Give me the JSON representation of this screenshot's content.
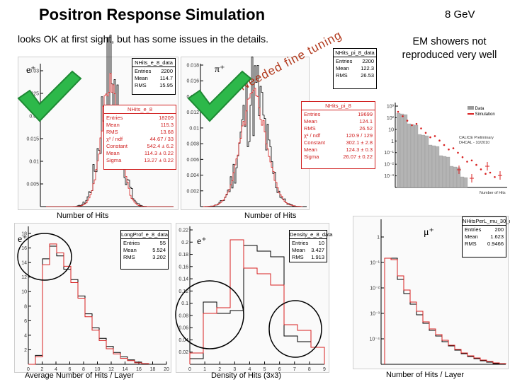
{
  "title": "Positron Response Simulation",
  "energy": "8 GeV",
  "subtitle": "looks OK at first sight, but has some issues in the details.",
  "note": "EM showers not reproduced very well",
  "needed_tuning": "Needed fine tuning",
  "colors": {
    "data": "#000000",
    "sim": "#d82020",
    "check": "#2db84a"
  },
  "panel_e": {
    "particle": "e⁺",
    "xlabel": "Number of Hits",
    "yticks": [
      "0.03",
      "0.025",
      "0.02",
      "0.015",
      "0.01",
      "0.005"
    ],
    "data_box": {
      "name": "NHits_e_8_data",
      "entries_label": "Entries",
      "entries": "2200",
      "mean_label": "Mean",
      "mean": "114.7",
      "rms_label": "RMS",
      "rms": "15.95"
    },
    "sim_box": {
      "name": "NHits_e_8",
      "rows": [
        [
          "Entries",
          "18209"
        ],
        [
          "Mean",
          "115.3"
        ],
        [
          "RMS",
          "13.68"
        ],
        [
          "χ² / ndf",
          "44.67 / 33"
        ],
        [
          "Constant",
          "542.4 ± 6.2"
        ],
        [
          "Mean",
          "114.3 ± 0.22"
        ],
        [
          "Sigma",
          "13.27 ± 0.22"
        ]
      ]
    }
  },
  "panel_pi": {
    "particle": "π⁺",
    "xlabel": "Number of Hits",
    "yticks": [
      "0.018",
      "0.016",
      "0.014",
      "0.012",
      "0.01",
      "0.008",
      "0.006",
      "0.004",
      "0.002"
    ],
    "data_box": {
      "name": "NHits_pi_8_data",
      "entries_label": "Entries",
      "entries": "2200",
      "mean_label": "Mean",
      "mean": "122.3",
      "rms_label": "RMS",
      "rms": "26.53"
    },
    "sim_box": {
      "name": "NHits_pi_8",
      "rows": [
        [
          "Entries",
          "19699"
        ],
        [
          "Mean",
          "124.1"
        ],
        [
          "RMS",
          "26.52"
        ],
        [
          "χ² / ndf",
          "120.9 / 129"
        ],
        [
          "Constant",
          "302.1 ± 2.8"
        ],
        [
          "Mean",
          "124.3 ± 0.3"
        ],
        [
          "Sigma",
          "26.07 ± 0.22"
        ]
      ]
    }
  },
  "panel_calice": {
    "legend_data": "Data",
    "legend_sim": "Simulation",
    "caption": "CALICE Preliminary DHCAL - 10/2010",
    "xlabel": "Number of Hits",
    "yticks": [
      "10³",
      "10²",
      "10",
      "1",
      "10⁻¹",
      "10⁻²",
      "10⁻³"
    ]
  },
  "panel_layer": {
    "particle": "e⁺",
    "xlabel": "Average Number of Hits / Layer",
    "yticks": [
      "18",
      "16",
      "14",
      "12",
      "10",
      "8",
      "6",
      "4",
      "2"
    ],
    "xticks": [
      "0",
      "2",
      "4",
      "6",
      "8",
      "10",
      "12",
      "14",
      "16",
      "18",
      "20"
    ],
    "box": {
      "name": "LongProf_e_8_data",
      "entries_label": "Entries",
      "entries": "55",
      "mean_label": "Mean",
      "mean": "5.524",
      "rms_label": "RMS",
      "rms": "3.202"
    }
  },
  "panel_density": {
    "particle": "e⁺",
    "xlabel": "Density of Hits (3x3)",
    "yticks": [
      "0.22",
      "0.2",
      "0.18",
      "0.16",
      "0.14",
      "0.12",
      "0.1",
      "0.08",
      "0.06",
      "0.04",
      "0.02"
    ],
    "xticks": [
      "0",
      "1",
      "2",
      "3",
      "4",
      "5",
      "6",
      "7",
      "8",
      "9"
    ],
    "box": {
      "name": "Density_e_8_data",
      "entries_label": "Entries",
      "entries": "10",
      "mean_label": "Mean",
      "mean": "3.427",
      "rms_label": "RMS",
      "rms": "1.913"
    }
  },
  "panel_mu": {
    "particle": "μ⁺",
    "xlabel": "Number of Hits / Layer",
    "yticks": [
      "1",
      "10⁻¹",
      "10⁻²",
      "10⁻³",
      "10⁻⁴"
    ],
    "box": {
      "name": "NHitsPerL_mu_30_data",
      "entries_label": "Entries",
      "entries": "200",
      "mean_label": "Mean",
      "mean": "1.623",
      "rms_label": "RMS",
      "rms": "0.9466"
    }
  }
}
